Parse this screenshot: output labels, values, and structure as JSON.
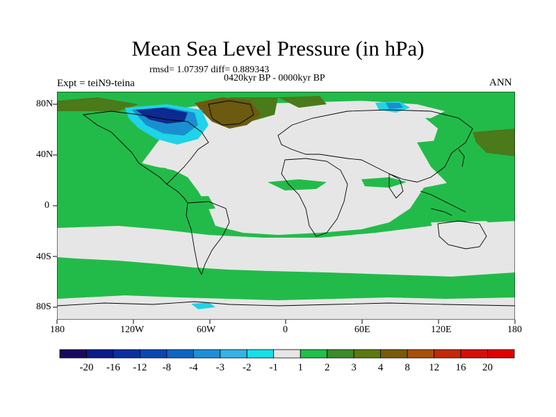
{
  "title": "Mean Sea Level Pressure (in hPa)",
  "stats_line": "rmsd= 1.07397 diff= 0.889343",
  "period_line": "0420kyr BP - 0000kyr BP",
  "expt_line": "Expt = teiN9-teina",
  "season": "ANN",
  "lat_labels": [
    "80N",
    "40N",
    "0",
    "40S",
    "80S"
  ],
  "lon_labels": [
    "180",
    "120W",
    "60W",
    "0",
    "60E",
    "120E",
    "180"
  ],
  "colorbar": {
    "labels": [
      "-20",
      "-16",
      "-12",
      "-8",
      "-4",
      "-3",
      "-2",
      "-1",
      "1",
      "2",
      "3",
      "4",
      "8",
      "12",
      "16",
      "20"
    ],
    "colors": [
      "#1a0a5e",
      "#0c1a8a",
      "#0a2fa0",
      "#0a47b4",
      "#0e66c4",
      "#1f8fd8",
      "#35b3e6",
      "#19dfe6",
      "#e6e6e6",
      "#1fbf4a",
      "#3a8c2a",
      "#5c7a10",
      "#7a5a08",
      "#a85008",
      "#c02a08",
      "#d41008",
      "#e00000"
    ]
  },
  "map_colors": {
    "neutral": "#e6e6e6",
    "positive_small": "#22bb4a",
    "positive_mid": "#4a7a1a",
    "positive_high": "#6b5a10",
    "negative_small": "#1fd3e8",
    "negative_mid": "#1a8fd0",
    "negative_high": "#0c2a90"
  }
}
